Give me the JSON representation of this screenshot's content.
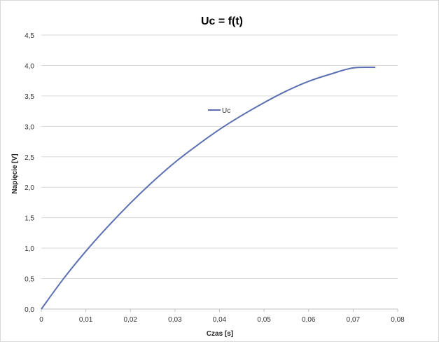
{
  "chart_data": {
    "type": "line",
    "title": "Uc = f(t)",
    "xlabel": "Czas [s]",
    "ylabel": "Napięcie [V]",
    "xlim": [
      0,
      0.08
    ],
    "ylim": [
      0,
      4.5
    ],
    "x_ticks": [
      "0",
      "0,01",
      "0,02",
      "0,03",
      "0,04",
      "0,05",
      "0,06",
      "0,07",
      "0,08"
    ],
    "y_ticks": [
      "0,0",
      "0,5",
      "1,0",
      "1,5",
      "2,0",
      "2,5",
      "3,0",
      "3,5",
      "4,0",
      "4,5"
    ],
    "grid": true,
    "legend_position": "inside-top-center",
    "series": [
      {
        "name": "Uc",
        "color": "#5b6fb1",
        "x": [
          0,
          0.005,
          0.01,
          0.015,
          0.02,
          0.025,
          0.03,
          0.035,
          0.04,
          0.045,
          0.05,
          0.055,
          0.06,
          0.065,
          0.07,
          0.075
        ],
        "y": [
          0,
          0.5,
          0.95,
          1.36,
          1.74,
          2.09,
          2.41,
          2.69,
          2.95,
          3.18,
          3.39,
          3.58,
          3.74,
          3.86,
          3.96,
          3.97
        ]
      }
    ]
  }
}
